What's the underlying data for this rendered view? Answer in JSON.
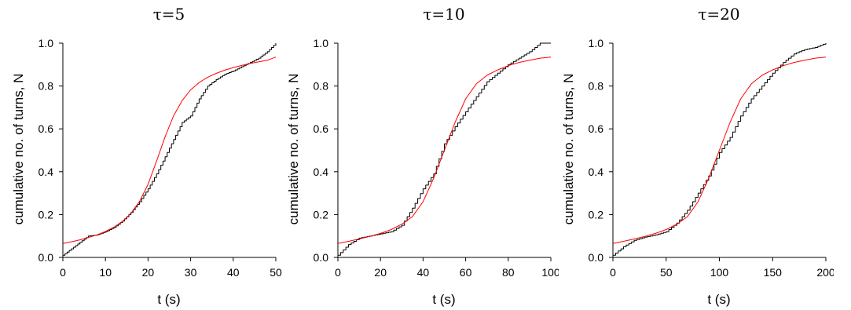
{
  "chart_data": [
    {
      "type": "line",
      "title": "τ=5",
      "xlabel": "t (s)",
      "ylabel": "cumulative no. of turns, N",
      "xlim": [
        0,
        50
      ],
      "ylim": [
        0,
        1.0
      ],
      "xticks": [
        0,
        10,
        20,
        30,
        40,
        50
      ],
      "yticks": [
        0.0,
        0.2,
        0.4,
        0.6,
        0.8,
        1.0
      ],
      "xtick_labels": [
        "0",
        "10",
        "20",
        "30",
        "40",
        "50"
      ],
      "ytick_labels": [
        "0.0",
        "0.2",
        "0.4",
        "0.6",
        "0.8",
        "1.0"
      ],
      "grid": false,
      "series": [
        {
          "color": "#000000",
          "style": "step",
          "x": [
            0,
            2,
            4,
            6,
            8,
            10,
            12,
            14,
            16,
            18,
            20,
            22,
            24,
            26,
            28,
            30,
            32,
            34,
            36,
            38,
            40,
            42,
            44,
            46,
            48,
            50
          ],
          "y": [
            0.01,
            0.04,
            0.07,
            0.1,
            0.105,
            0.12,
            0.14,
            0.17,
            0.21,
            0.26,
            0.32,
            0.39,
            0.47,
            0.55,
            0.63,
            0.66,
            0.74,
            0.8,
            0.83,
            0.855,
            0.87,
            0.89,
            0.91,
            0.93,
            0.96,
            1.0
          ]
        },
        {
          "color": "#ff0000",
          "style": "smooth",
          "x": [
            0,
            2,
            4,
            6,
            8,
            10,
            12,
            14,
            16,
            18,
            20,
            22,
            24,
            26,
            28,
            30,
            32,
            34,
            36,
            38,
            40,
            42,
            44,
            46,
            48,
            50
          ],
          "y": [
            0.065,
            0.073,
            0.082,
            0.093,
            0.105,
            0.121,
            0.141,
            0.168,
            0.206,
            0.261,
            0.341,
            0.449,
            0.563,
            0.661,
            0.732,
            0.782,
            0.816,
            0.841,
            0.859,
            0.874,
            0.886,
            0.896,
            0.905,
            0.913,
            0.92,
            0.935
          ]
        }
      ]
    },
    {
      "type": "line",
      "title": "τ=10",
      "xlabel": "t (s)",
      "ylabel": "cumulative no. of turns, N",
      "xlim": [
        0,
        100
      ],
      "ylim": [
        0,
        1.0
      ],
      "xticks": [
        0,
        20,
        40,
        60,
        80,
        100
      ],
      "yticks": [
        0.0,
        0.2,
        0.4,
        0.6,
        0.8,
        1.0
      ],
      "xtick_labels": [
        "0",
        "20",
        "40",
        "60",
        "80",
        "100"
      ],
      "ytick_labels": [
        "0.0",
        "0.2",
        "0.4",
        "0.6",
        "0.8",
        "1.0"
      ],
      "grid": false,
      "series": [
        {
          "color": "#000000",
          "style": "step",
          "x": [
            0,
            5,
            10,
            15,
            20,
            25,
            30,
            35,
            40,
            45,
            50,
            55,
            60,
            65,
            70,
            75,
            80,
            85,
            90,
            95,
            100
          ],
          "y": [
            0.01,
            0.06,
            0.09,
            0.1,
            0.11,
            0.12,
            0.15,
            0.23,
            0.32,
            0.39,
            0.53,
            0.61,
            0.68,
            0.75,
            0.82,
            0.86,
            0.9,
            0.93,
            0.96,
            1.0,
            1.0
          ]
        },
        {
          "color": "#ff0000",
          "style": "smooth",
          "x": [
            0,
            5,
            10,
            15,
            20,
            25,
            30,
            35,
            40,
            45,
            50,
            55,
            60,
            65,
            70,
            75,
            80,
            85,
            90,
            95,
            100
          ],
          "y": [
            0.065,
            0.075,
            0.086,
            0.098,
            0.112,
            0.13,
            0.155,
            0.19,
            0.26,
            0.37,
            0.5,
            0.63,
            0.74,
            0.81,
            0.85,
            0.875,
            0.895,
            0.91,
            0.92,
            0.93,
            0.935
          ]
        }
      ]
    },
    {
      "type": "line",
      "title": "τ=20",
      "xlabel": "t (s)",
      "ylabel": "cumulative no. of turns, N",
      "xlim": [
        0,
        200
      ],
      "ylim": [
        0,
        1.0
      ],
      "xticks": [
        0,
        50,
        100,
        150,
        200
      ],
      "yticks": [
        0.0,
        0.2,
        0.4,
        0.6,
        0.8,
        1.0
      ],
      "xtick_labels": [
        "0",
        "50",
        "100",
        "150",
        "200"
      ],
      "ytick_labels": [
        "0.0",
        "0.2",
        "0.4",
        "0.6",
        "0.8",
        "1.0"
      ],
      "grid": false,
      "series": [
        {
          "color": "#000000",
          "style": "step",
          "x": [
            0,
            10,
            20,
            30,
            40,
            50,
            60,
            70,
            80,
            90,
            100,
            110,
            120,
            130,
            140,
            150,
            160,
            170,
            180,
            190,
            200
          ],
          "y": [
            0.01,
            0.05,
            0.08,
            0.095,
            0.105,
            0.12,
            0.16,
            0.22,
            0.3,
            0.38,
            0.49,
            0.56,
            0.66,
            0.74,
            0.8,
            0.86,
            0.91,
            0.95,
            0.97,
            0.98,
            1.0
          ]
        },
        {
          "color": "#ff0000",
          "style": "smooth",
          "x": [
            0,
            10,
            20,
            30,
            40,
            50,
            60,
            70,
            80,
            90,
            100,
            110,
            120,
            130,
            140,
            150,
            160,
            170,
            180,
            190,
            200
          ],
          "y": [
            0.065,
            0.075,
            0.086,
            0.098,
            0.112,
            0.13,
            0.155,
            0.19,
            0.26,
            0.37,
            0.5,
            0.63,
            0.74,
            0.81,
            0.85,
            0.875,
            0.895,
            0.91,
            0.92,
            0.93,
            0.935
          ]
        }
      ]
    }
  ]
}
